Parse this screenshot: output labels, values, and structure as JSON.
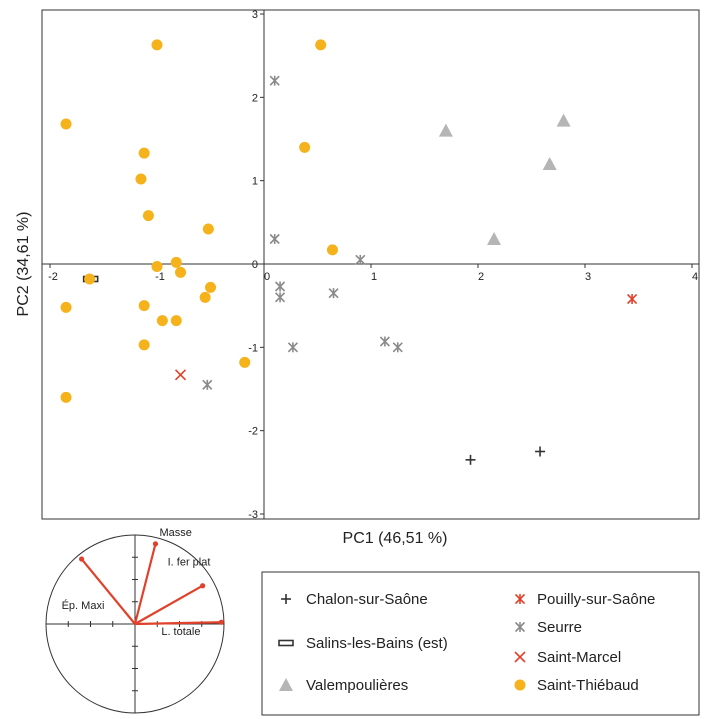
{
  "chart_data": [
    {
      "type": "scatter",
      "xlabel": "PC1 (46,51 %)",
      "ylabel": "PC2 (34,61 %)",
      "xlim": [
        -2,
        4
      ],
      "ylim": [
        -3,
        3
      ],
      "xticks": [
        -2,
        -1,
        0,
        1,
        2,
        3,
        4
      ],
      "yticks": [
        -3,
        -2,
        -1,
        0,
        1,
        2,
        3
      ],
      "x_tick_labels": [
        "-2",
        "-1",
        "0",
        "1",
        "2",
        "3",
        "4"
      ],
      "y_tick_labels": [
        "-3",
        "-2",
        "-1",
        "0",
        "1",
        "2",
        "3"
      ],
      "grid": false,
      "legend_position": "bottom-right",
      "series": [
        {
          "name": "Chalon-sur-Saône",
          "marker": "plus",
          "color": "#333333",
          "points": [
            [
              1.93,
              -2.35
            ],
            [
              2.58,
              -2.25
            ]
          ]
        },
        {
          "name": "Salins-les-Bains (est)",
          "marker": "rect",
          "color": "#333333",
          "points": [
            [
              -1.62,
              -0.18
            ]
          ]
        },
        {
          "name": "Valempoulières",
          "marker": "triangle",
          "color": "#b5b5b5",
          "points": [
            [
              1.7,
              1.6
            ],
            [
              2.8,
              1.72
            ],
            [
              2.67,
              1.2
            ],
            [
              2.15,
              0.3
            ]
          ]
        },
        {
          "name": "Pouilly-sur-Saône",
          "marker": "asterisk",
          "color": "#e0412a",
          "points": [
            [
              3.44,
              -0.42
            ]
          ]
        },
        {
          "name": "Seurre",
          "marker": "asterisk",
          "color": "#8a8a8a",
          "points": [
            [
              0.1,
              2.2
            ],
            [
              0.1,
              0.3
            ],
            [
              0.9,
              0.05
            ],
            [
              0.15,
              -0.27
            ],
            [
              0.15,
              -0.4
            ],
            [
              0.65,
              -0.35
            ],
            [
              0.27,
              -1.0
            ],
            [
              1.13,
              -0.93
            ],
            [
              1.25,
              -1.0
            ],
            [
              -0.53,
              -1.45
            ]
          ]
        },
        {
          "name": "Saint-Marcel",
          "marker": "cross",
          "color": "#e0412a",
          "points": [
            [
              -0.78,
              -1.33
            ]
          ]
        },
        {
          "name": "Saint-Thiébaud",
          "marker": "circle",
          "color": "#f5b21a",
          "points": [
            [
              -1.0,
              2.63
            ],
            [
              0.53,
              2.63
            ],
            [
              -1.85,
              1.68
            ],
            [
              -1.12,
              1.33
            ],
            [
              0.38,
              1.4
            ],
            [
              -1.15,
              1.02
            ],
            [
              -1.08,
              0.58
            ],
            [
              -0.52,
              0.42
            ],
            [
              0.64,
              0.17
            ],
            [
              -1.0,
              -0.03
            ],
            [
              -0.82,
              0.02
            ],
            [
              -0.78,
              -0.1
            ],
            [
              -1.63,
              -0.18
            ],
            [
              -1.85,
              -0.52
            ],
            [
              -1.12,
              -0.5
            ],
            [
              -0.5,
              -0.28
            ],
            [
              -0.55,
              -0.4
            ],
            [
              -0.95,
              -0.68
            ],
            [
              -0.82,
              -0.68
            ],
            [
              -1.12,
              -0.97
            ],
            [
              -0.18,
              -1.18
            ],
            [
              -1.85,
              -1.6
            ]
          ]
        }
      ]
    },
    {
      "type": "correlation-circle",
      "vectors": [
        {
          "label": "Masse",
          "x": 0.23,
          "y": 0.9
        },
        {
          "label": "I. fer plat",
          "x": 0.76,
          "y": 0.43
        },
        {
          "label": "L. totale",
          "x": 0.97,
          "y": 0.02
        },
        {
          "label": "Ép. Maxi",
          "x": -0.6,
          "y": 0.73
        }
      ],
      "show_axes": true
    }
  ],
  "legend": {
    "items": [
      {
        "label": "Chalon-sur-Saône",
        "marker": "plus",
        "color": "#333333"
      },
      {
        "label": "Salins-les-Bains (est)",
        "marker": "rect",
        "color": "#333333"
      },
      {
        "label": "Valempoulières",
        "marker": "triangle",
        "color": "#b5b5b5"
      },
      {
        "label": "Pouilly-sur-Saône",
        "marker": "asterisk",
        "color": "#e0412a"
      },
      {
        "label": "Seurre",
        "marker": "asterisk",
        "color": "#8a8a8a"
      },
      {
        "label": "Saint-Marcel",
        "marker": "cross",
        "color": "#e0412a"
      },
      {
        "label": "Saint-Thiébaud",
        "marker": "circle",
        "color": "#f5b21a"
      }
    ]
  }
}
